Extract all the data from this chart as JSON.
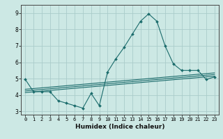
{
  "title": "",
  "xlabel": "Humidex (Indice chaleur)",
  "bg_color": "#cce8e4",
  "grid_color": "#aaccca",
  "line_color": "#1a6b6b",
  "xlim": [
    -0.5,
    23.5
  ],
  "ylim": [
    2.8,
    9.5
  ],
  "yticks": [
    3,
    4,
    5,
    6,
    7,
    8,
    9
  ],
  "xticks": [
    0,
    1,
    2,
    3,
    4,
    5,
    6,
    7,
    8,
    9,
    10,
    11,
    12,
    13,
    14,
    15,
    16,
    17,
    18,
    19,
    20,
    21,
    22,
    23
  ],
  "curve1_x": [
    0,
    1,
    2,
    3,
    4,
    5,
    6,
    7,
    8,
    9,
    10,
    11,
    12,
    13,
    14,
    15,
    16,
    17,
    18,
    19,
    20,
    21,
    22,
    23
  ],
  "curve1_y": [
    4.95,
    4.2,
    4.2,
    4.2,
    3.65,
    3.5,
    3.35,
    3.2,
    4.1,
    3.35,
    5.4,
    6.2,
    6.9,
    7.7,
    8.5,
    8.95,
    8.5,
    7.0,
    5.9,
    5.5,
    5.5,
    5.5,
    4.95,
    5.1
  ],
  "line2_y0": 4.15,
  "line2_y1": 5.15,
  "line3_y0": 4.25,
  "line3_y1": 5.25,
  "line4_y0": 4.35,
  "line4_y1": 5.35
}
